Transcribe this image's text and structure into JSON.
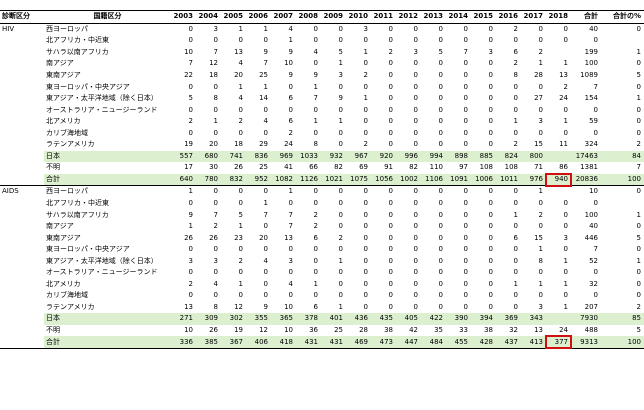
{
  "headers": {
    "diag": "診断区分",
    "nat": "国籍区分",
    "years": [
      "2003",
      "2004",
      "2005",
      "2006",
      "2007",
      "2008",
      "2009",
      "2010",
      "2011",
      "2012",
      "2013",
      "2014",
      "2015",
      "2016",
      "2017",
      "2018"
    ],
    "total": "合計",
    "pct": "合計の%"
  },
  "sections": [
    {
      "name": "HIV",
      "rows": [
        {
          "label": "西ヨーロッパ",
          "values": [
            "0",
            "3",
            "1",
            "1",
            "4",
            "0",
            "0",
            "3",
            "0",
            "0",
            "0",
            "0",
            "0",
            "2",
            "0",
            "0",
            "40",
            "0"
          ]
        },
        {
          "label": "北アフリカ・中近東",
          "values": [
            "0",
            "0",
            "0",
            "0",
            "1",
            "0",
            "0",
            "0",
            "0",
            "0",
            "0",
            "0",
            "0",
            "0",
            "0",
            "0",
            "0",
            ""
          ]
        },
        {
          "label": "サハラ以南アフリカ",
          "values": [
            "10",
            "7",
            "13",
            "9",
            "9",
            "4",
            "5",
            "1",
            "2",
            "3",
            "5",
            "7",
            "3",
            "6",
            "2",
            "",
            "199",
            "1"
          ]
        },
        {
          "label": "南アジア",
          "values": [
            "7",
            "12",
            "4",
            "7",
            "10",
            "0",
            "1",
            "0",
            "0",
            "0",
            "0",
            "0",
            "0",
            "2",
            "1",
            "1",
            "100",
            "0"
          ]
        },
        {
          "label": "東南アジア",
          "values": [
            "22",
            "18",
            "20",
            "25",
            "9",
            "9",
            "3",
            "2",
            "0",
            "0",
            "0",
            "0",
            "0",
            "8",
            "28",
            "13",
            "1089",
            "5"
          ]
        },
        {
          "label": "東ヨーロッパ・中央アジア",
          "values": [
            "0",
            "0",
            "1",
            "1",
            "0",
            "1",
            "0",
            "0",
            "0",
            "0",
            "0",
            "0",
            "0",
            "0",
            "0",
            "2",
            "7",
            "0"
          ]
        },
        {
          "label": "東アジア・太平洋地域（除く日本）",
          "values": [
            "5",
            "8",
            "4",
            "14",
            "6",
            "7",
            "9",
            "1",
            "0",
            "0",
            "0",
            "0",
            "0",
            "0",
            "27",
            "24",
            "154",
            "1"
          ]
        },
        {
          "label": "オーストラリア・ニュージーランド",
          "values": [
            "0",
            "0",
            "0",
            "0",
            "0",
            "0",
            "0",
            "0",
            "0",
            "0",
            "0",
            "0",
            "0",
            "0",
            "0",
            "0",
            "0",
            "0"
          ]
        },
        {
          "label": "北アメリカ",
          "values": [
            "2",
            "1",
            "2",
            "4",
            "6",
            "1",
            "1",
            "0",
            "0",
            "0",
            "0",
            "0",
            "0",
            "1",
            "3",
            "1",
            "59",
            "0"
          ]
        },
        {
          "label": "カリブ海地域",
          "values": [
            "0",
            "0",
            "0",
            "0",
            "2",
            "0",
            "0",
            "0",
            "0",
            "0",
            "0",
            "0",
            "0",
            "0",
            "0",
            "0",
            "0",
            "0"
          ]
        },
        {
          "label": "ラテンアメリカ",
          "values": [
            "19",
            "20",
            "18",
            "29",
            "24",
            "8",
            "0",
            "2",
            "0",
            "0",
            "0",
            "0",
            "0",
            "2",
            "15",
            "11",
            "324",
            "2"
          ]
        },
        {
          "label": "日本",
          "values": [
            "557",
            "680",
            "741",
            "836",
            "969",
            "1033",
            "932",
            "967",
            "920",
            "996",
            "994",
            "898",
            "885",
            "824",
            "800",
            "",
            "17463",
            "84"
          ],
          "green": true
        },
        {
          "label": "不明",
          "values": [
            "17",
            "30",
            "26",
            "25",
            "41",
            "66",
            "82",
            "69",
            "91",
            "82",
            "110",
            "97",
            "108",
            "108",
            "71",
            "86",
            "1381",
            "7"
          ]
        },
        {
          "label": "合計",
          "values": [
            "640",
            "780",
            "832",
            "952",
            "1082",
            "1126",
            "1021",
            "1075",
            "1056",
            "1002",
            "1106",
            "1091",
            "1006",
            "1011",
            "976",
            "940",
            "20836",
            "100"
          ],
          "total": true,
          "highlight": 15
        }
      ]
    },
    {
      "name": "AIDS",
      "rows": [
        {
          "label": "西ヨーロッパ",
          "values": [
            "1",
            "0",
            "0",
            "0",
            "1",
            "0",
            "0",
            "0",
            "0",
            "0",
            "0",
            "0",
            "0",
            "0",
            "1",
            "",
            "10",
            "0"
          ]
        },
        {
          "label": "北アフリカ・中近東",
          "values": [
            "0",
            "0",
            "0",
            "1",
            "0",
            "0",
            "0",
            "0",
            "0",
            "0",
            "0",
            "0",
            "0",
            "0",
            "0",
            "0",
            "0",
            ""
          ]
        },
        {
          "label": "サハラ以南アフリカ",
          "values": [
            "9",
            "7",
            "5",
            "7",
            "7",
            "2",
            "0",
            "0",
            "0",
            "0",
            "0",
            "0",
            "0",
            "1",
            "2",
            "0",
            "100",
            "1"
          ]
        },
        {
          "label": "南アジア",
          "values": [
            "1",
            "2",
            "1",
            "0",
            "7",
            "2",
            "0",
            "0",
            "0",
            "0",
            "0",
            "0",
            "0",
            "0",
            "0",
            "0",
            "40",
            "0"
          ]
        },
        {
          "label": "東南アジア",
          "values": [
            "26",
            "26",
            "23",
            "20",
            "13",
            "6",
            "2",
            "0",
            "0",
            "0",
            "0",
            "0",
            "0",
            "6",
            "15",
            "3",
            "446",
            "5"
          ]
        },
        {
          "label": "東ヨーロッパ・中央アジア",
          "values": [
            "0",
            "0",
            "0",
            "0",
            "0",
            "0",
            "0",
            "0",
            "0",
            "0",
            "0",
            "0",
            "0",
            "0",
            "1",
            "0",
            "7",
            "0"
          ]
        },
        {
          "label": "東アジア・太平洋地域（除く日本）",
          "values": [
            "3",
            "3",
            "2",
            "4",
            "3",
            "0",
            "1",
            "0",
            "0",
            "0",
            "0",
            "0",
            "0",
            "0",
            "8",
            "1",
            "52",
            "1"
          ]
        },
        {
          "label": "オーストラリア・ニュージーランド",
          "values": [
            "0",
            "0",
            "0",
            "0",
            "0",
            "0",
            "0",
            "0",
            "0",
            "0",
            "0",
            "0",
            "0",
            "0",
            "0",
            "0",
            "0",
            "0"
          ]
        },
        {
          "label": "北アメリカ",
          "values": [
            "2",
            "4",
            "1",
            "0",
            "4",
            "1",
            "0",
            "0",
            "0",
            "0",
            "0",
            "0",
            "0",
            "1",
            "1",
            "1",
            "32",
            "0"
          ]
        },
        {
          "label": "カリブ海地域",
          "values": [
            "0",
            "0",
            "0",
            "0",
            "0",
            "0",
            "0",
            "0",
            "0",
            "0",
            "0",
            "0",
            "0",
            "0",
            "0",
            "0",
            "0",
            "0"
          ]
        },
        {
          "label": "ラテンアメリカ",
          "values": [
            "13",
            "8",
            "12",
            "9",
            "10",
            "6",
            "1",
            "0",
            "0",
            "0",
            "0",
            "0",
            "0",
            "0",
            "3",
            "1",
            "207",
            "2"
          ]
        },
        {
          "label": "日本",
          "values": [
            "271",
            "309",
            "302",
            "355",
            "365",
            "378",
            "401",
            "436",
            "435",
            "405",
            "422",
            "390",
            "394",
            "369",
            "343",
            "",
            "7930",
            "85"
          ],
          "green": true
        },
        {
          "label": "不明",
          "values": [
            "10",
            "26",
            "19",
            "12",
            "10",
            "36",
            "25",
            "28",
            "38",
            "42",
            "35",
            "33",
            "38",
            "32",
            "13",
            "24",
            "488",
            "5"
          ]
        },
        {
          "label": "合計",
          "values": [
            "336",
            "385",
            "367",
            "406",
            "418",
            "431",
            "431",
            "469",
            "473",
            "447",
            "484",
            "455",
            "428",
            "437",
            "413",
            "377",
            "9313",
            "100"
          ],
          "total": true,
          "highlight": 15
        }
      ]
    }
  ]
}
